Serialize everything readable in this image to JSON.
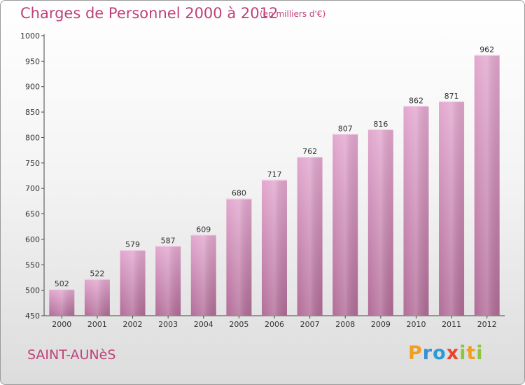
{
  "header": {
    "title": "Charges de Personnel 2000 à 2012",
    "subtitle": "(en milliers d'€)"
  },
  "footer": {
    "commune": "SAINT-AUNèS",
    "logo_letters": [
      "P",
      "r",
      "o",
      "x",
      "i",
      "t",
      "i"
    ]
  },
  "colors": {
    "bar_top": "#e3a8cf",
    "bar_bottom": "#b26d98",
    "title": "#c0407a"
  },
  "chart_data": {
    "type": "bar",
    "categories": [
      "2000",
      "2001",
      "2002",
      "2003",
      "2004",
      "2005",
      "2006",
      "2007",
      "2008",
      "2009",
      "2010",
      "2011",
      "2012"
    ],
    "values": [
      502,
      522,
      579,
      587,
      609,
      680,
      717,
      762,
      807,
      816,
      862,
      871,
      962
    ],
    "title": "Charges de Personnel 2000 à 2012",
    "xlabel": "",
    "ylabel": "",
    "ylim": [
      450,
      1000
    ],
    "yticks": [
      450,
      500,
      550,
      600,
      650,
      700,
      750,
      800,
      850,
      900,
      950,
      1000
    ],
    "grid": false,
    "legend": "none"
  }
}
